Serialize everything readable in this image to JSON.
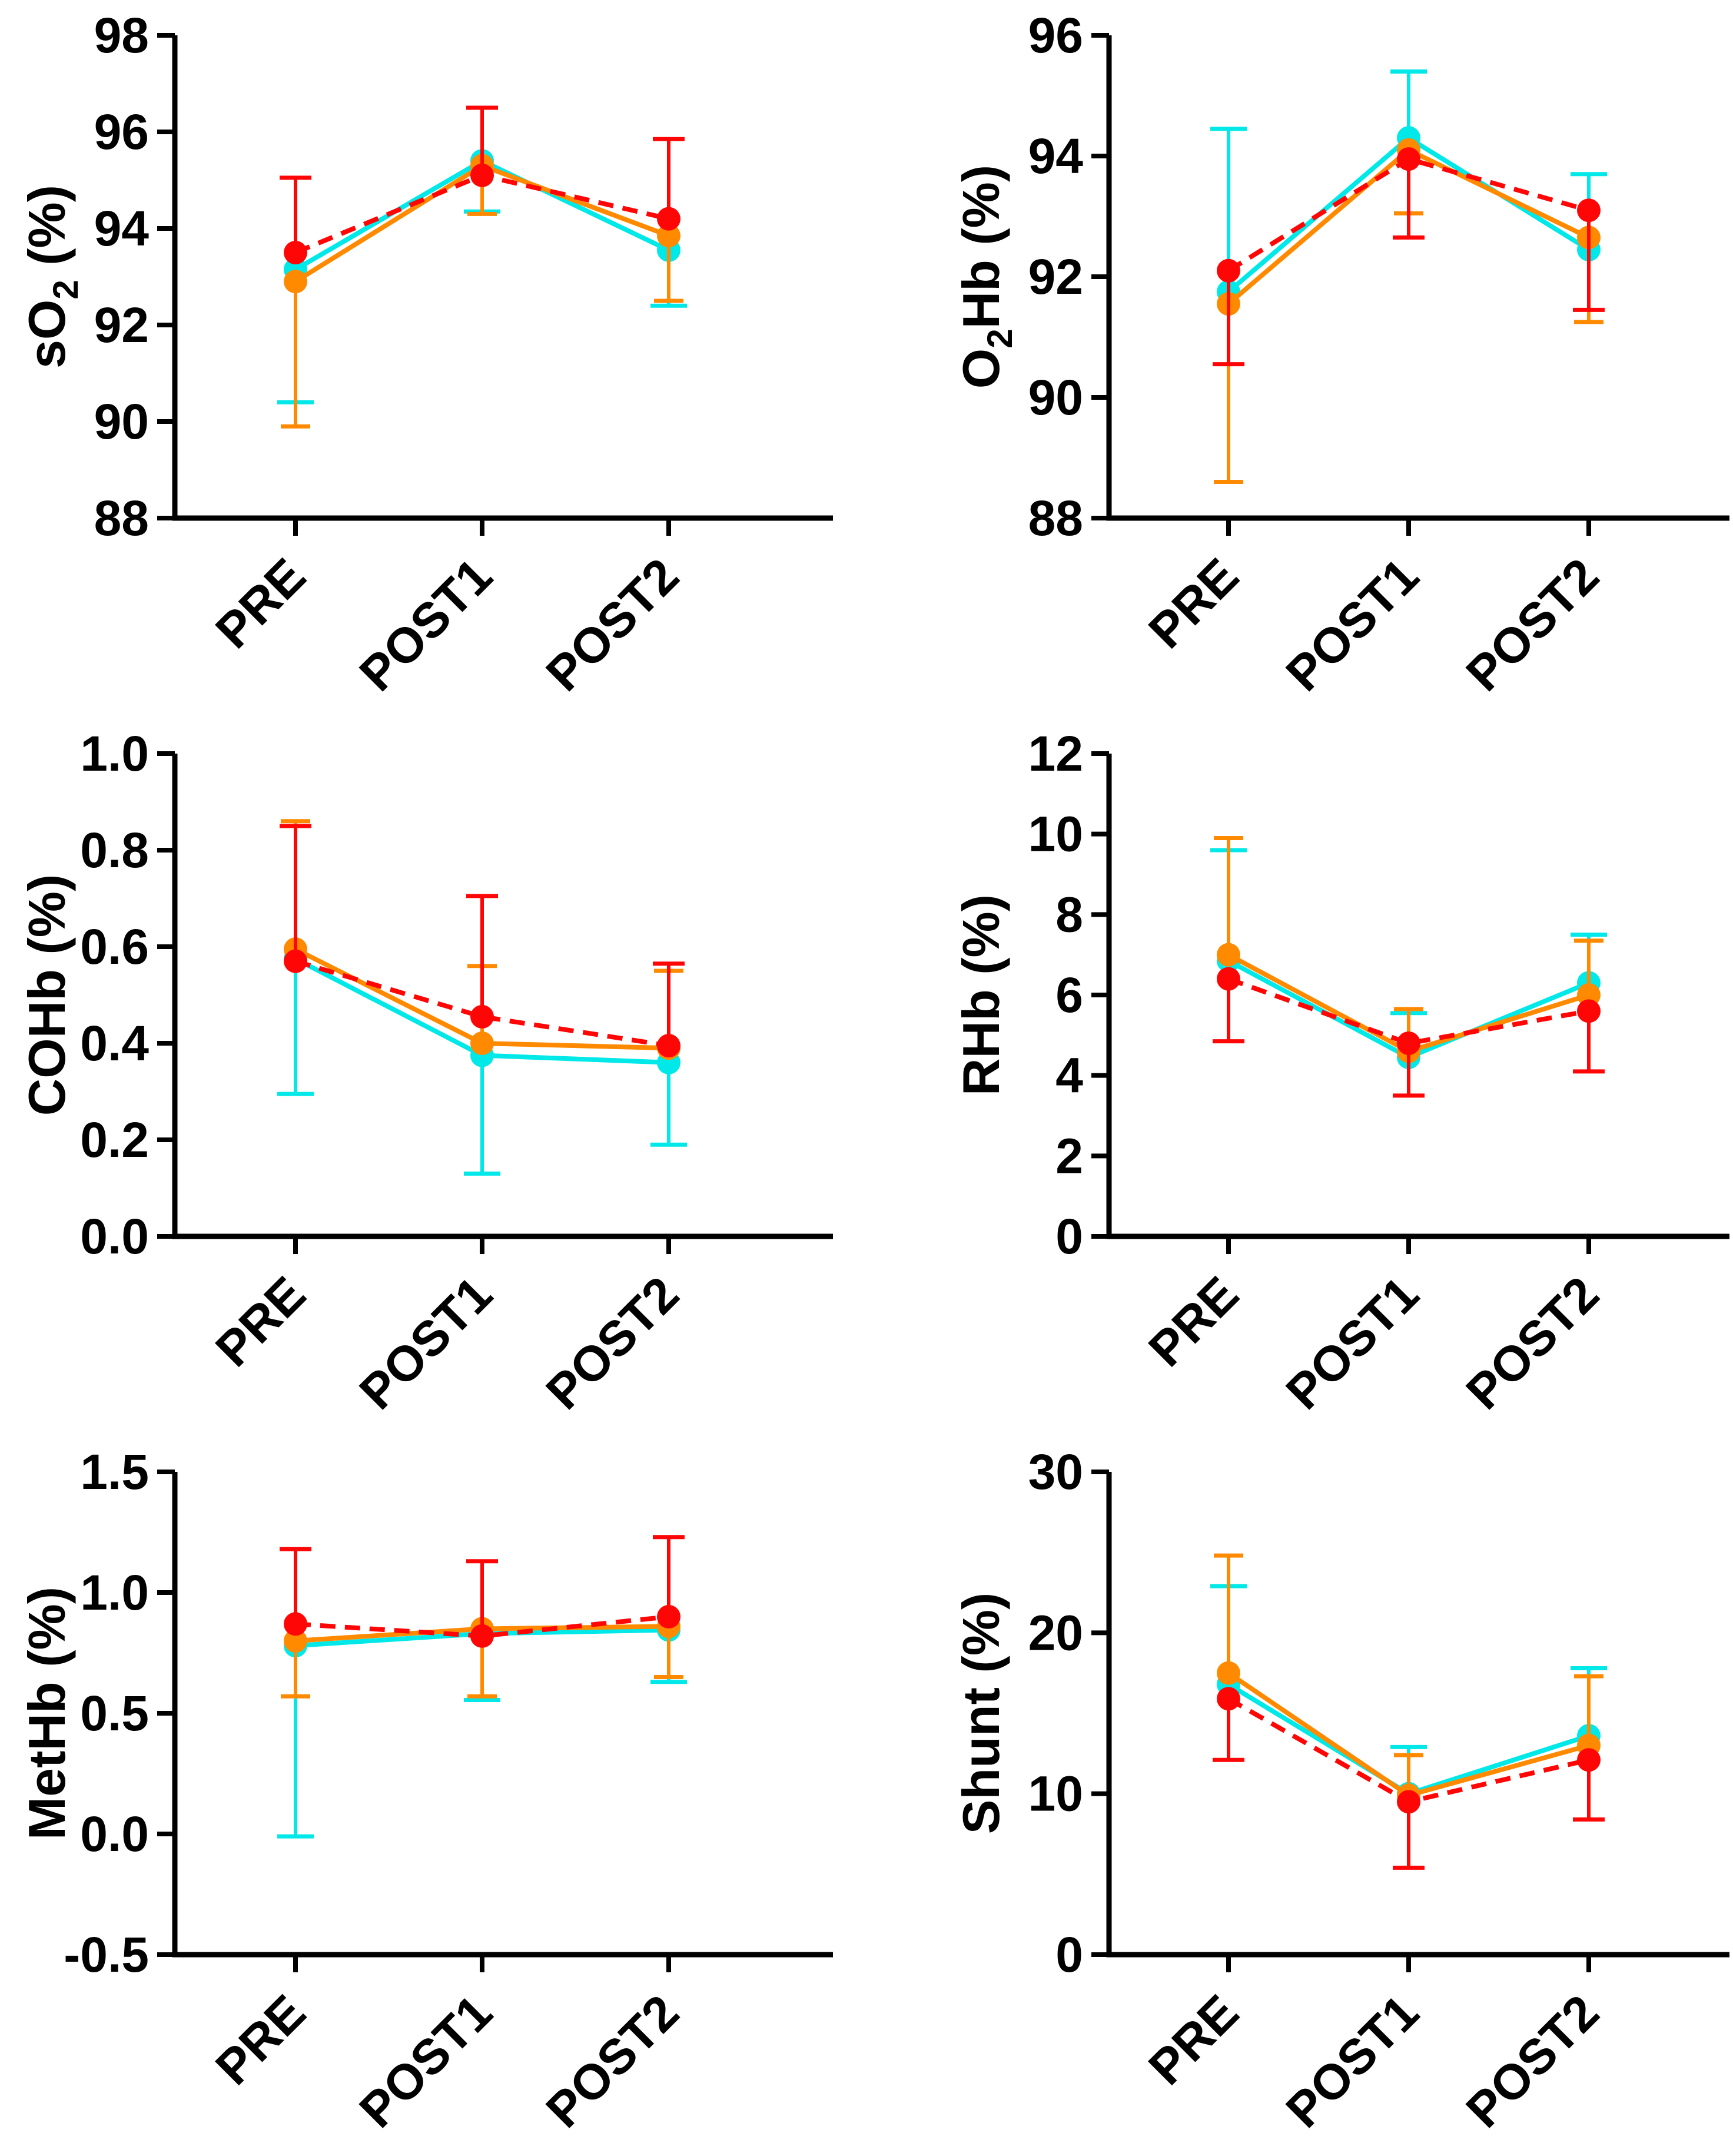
{
  "figure": {
    "background": "#FFFFFF",
    "axis_color": "#000000",
    "columns": 2,
    "rows": 3
  },
  "chart_data": [
    {
      "type": "line",
      "key": "so2",
      "ylabel": "sO2 (%)",
      "ylabel_parts": [
        {
          "text": "sO"
        },
        {
          "text": "2",
          "sub": true
        },
        {
          "text": " (%)"
        }
      ],
      "categories": [
        "PRE",
        "POST1",
        "POST2"
      ],
      "ylim": [
        88,
        98
      ],
      "yticks": [
        {
          "v": 88,
          "label": "88"
        },
        {
          "v": 90,
          "label": "90"
        },
        {
          "v": 92,
          "label": "92"
        },
        {
          "v": 94,
          "label": "94"
        },
        {
          "v": 96,
          "label": "96"
        },
        {
          "v": 98,
          "label": "98"
        }
      ],
      "grid": false,
      "legend": "none",
      "column": "left",
      "series": [
        {
          "name": "cyan-solid",
          "color": "#00E8E8",
          "dash": false,
          "values": [
            93.15,
            95.4,
            93.55
          ],
          "err_down": [
            90.4,
            94.35,
            92.4
          ],
          "err_up": [
            null,
            null,
            null
          ]
        },
        {
          "name": "orange-solid",
          "color": "#FF8A00",
          "dash": false,
          "values": [
            92.9,
            95.3,
            93.85
          ],
          "err_down": [
            89.9,
            94.3,
            92.5
          ],
          "err_up": [
            null,
            null,
            null
          ]
        },
        {
          "name": "red-dashed",
          "color": "#FF0606",
          "dash": true,
          "values": [
            93.5,
            95.1,
            94.2
          ],
          "err_down": [
            null,
            null,
            null
          ],
          "err_up": [
            95.05,
            96.5,
            95.85
          ]
        }
      ]
    },
    {
      "type": "line",
      "key": "o2hb",
      "ylabel": "O2Hb (%)",
      "ylabel_parts": [
        {
          "text": "O"
        },
        {
          "text": "2",
          "sub": true
        },
        {
          "text": "Hb (%)"
        }
      ],
      "categories": [
        "PRE",
        "POST1",
        "POST2"
      ],
      "ylim": [
        88,
        96
      ],
      "yticks": [
        {
          "v": 88,
          "label": "88"
        },
        {
          "v": 90,
          "label": "90"
        },
        {
          "v": 92,
          "label": "92"
        },
        {
          "v": 94,
          "label": "94"
        },
        {
          "v": 96,
          "label": "96"
        }
      ],
      "grid": false,
      "legend": "none",
      "column": "right",
      "series": [
        {
          "name": "cyan-solid",
          "color": "#00E8E8",
          "dash": false,
          "values": [
            91.75,
            94.3,
            92.45
          ],
          "err_down": [
            null,
            null,
            null
          ],
          "err_up": [
            94.45,
            95.4,
            93.7
          ]
        },
        {
          "name": "orange-solid",
          "color": "#FF8A00",
          "dash": false,
          "values": [
            91.55,
            94.1,
            92.65
          ],
          "err_down": [
            88.6,
            93.05,
            91.25
          ],
          "err_up": [
            null,
            null,
            null
          ]
        },
        {
          "name": "red-dashed",
          "color": "#FF0606",
          "dash": true,
          "values": [
            92.1,
            93.95,
            93.1
          ],
          "err_down": [
            90.55,
            92.65,
            91.45
          ],
          "err_up": [
            null,
            null,
            null
          ]
        }
      ]
    },
    {
      "type": "line",
      "key": "cohb",
      "ylabel": "COHb (%)",
      "ylabel_parts": [
        {
          "text": "COHb (%)"
        }
      ],
      "categories": [
        "PRE",
        "POST1",
        "POST2"
      ],
      "ylim": [
        0,
        1
      ],
      "yticks": [
        {
          "v": 0,
          "label": "0.0"
        },
        {
          "v": 0.2,
          "label": "0.2"
        },
        {
          "v": 0.4,
          "label": "0.4"
        },
        {
          "v": 0.6,
          "label": "0.6"
        },
        {
          "v": 0.8,
          "label": "0.8"
        },
        {
          "v": 1.0,
          "label": "1.0"
        }
      ],
      "grid": false,
      "legend": "none",
      "column": "left",
      "series": [
        {
          "name": "cyan-solid",
          "color": "#00E8E8",
          "dash": false,
          "values": [
            0.575,
            0.375,
            0.36
          ],
          "err_down": [
            0.295,
            0.13,
            0.19
          ],
          "err_up": [
            null,
            null,
            null
          ]
        },
        {
          "name": "orange-solid",
          "color": "#FF8A00",
          "dash": false,
          "values": [
            0.595,
            0.4,
            0.39
          ],
          "err_down": [
            null,
            null,
            null
          ],
          "err_up": [
            0.86,
            0.56,
            0.55
          ]
        },
        {
          "name": "red-dashed",
          "color": "#FF0606",
          "dash": true,
          "values": [
            0.57,
            0.455,
            0.395
          ],
          "err_down": [
            null,
            null,
            null
          ],
          "err_up": [
            0.85,
            0.705,
            0.565
          ]
        }
      ]
    },
    {
      "type": "line",
      "key": "rhb",
      "ylabel": "RHb (%)",
      "ylabel_parts": [
        {
          "text": "RHb (%)"
        }
      ],
      "categories": [
        "PRE",
        "POST1",
        "POST2"
      ],
      "ylim": [
        0,
        12
      ],
      "yticks": [
        {
          "v": 0,
          "label": "0"
        },
        {
          "v": 2,
          "label": "2"
        },
        {
          "v": 4,
          "label": "4"
        },
        {
          "v": 6,
          "label": "6"
        },
        {
          "v": 8,
          "label": "8"
        },
        {
          "v": 10,
          "label": "10"
        },
        {
          "v": 12,
          "label": "12"
        }
      ],
      "grid": false,
      "legend": "none",
      "column": "right",
      "series": [
        {
          "name": "cyan-solid",
          "color": "#00E8E8",
          "dash": false,
          "values": [
            6.85,
            4.45,
            6.3
          ],
          "err_down": [
            null,
            null,
            null
          ],
          "err_up": [
            9.6,
            5.55,
            7.5
          ]
        },
        {
          "name": "orange-solid",
          "color": "#FF8A00",
          "dash": false,
          "values": [
            7.0,
            4.6,
            6.0
          ],
          "err_down": [
            null,
            null,
            null
          ],
          "err_up": [
            9.9,
            5.65,
            7.35
          ]
        },
        {
          "name": "red-dashed",
          "color": "#FF0606",
          "dash": true,
          "values": [
            6.4,
            4.8,
            5.6
          ],
          "err_down": [
            4.85,
            3.5,
            4.1
          ],
          "err_up": [
            null,
            null,
            null
          ]
        }
      ]
    },
    {
      "type": "line",
      "key": "methb",
      "ylabel": "MetHb (%)",
      "ylabel_parts": [
        {
          "text": "MetHb (%)"
        }
      ],
      "categories": [
        "PRE",
        "POST1",
        "POST2"
      ],
      "ylim": [
        -0.5,
        1.5
      ],
      "yticks": [
        {
          "v": -0.5,
          "label": "-0.5"
        },
        {
          "v": 0.0,
          "label": "0.0"
        },
        {
          "v": 0.5,
          "label": "0.5"
        },
        {
          "v": 1.0,
          "label": "1.0"
        },
        {
          "v": 1.5,
          "label": "1.5"
        }
      ],
      "grid": false,
      "legend": "none",
      "column": "left",
      "series": [
        {
          "name": "cyan-solid",
          "color": "#00E8E8",
          "dash": false,
          "values": [
            0.78,
            0.83,
            0.845
          ],
          "err_down": [
            -0.01,
            0.555,
            0.63
          ],
          "err_up": [
            null,
            null,
            null
          ]
        },
        {
          "name": "orange-solid",
          "color": "#FF8A00",
          "dash": false,
          "values": [
            0.8,
            0.85,
            0.86
          ],
          "err_down": [
            0.57,
            0.57,
            0.65
          ],
          "err_up": [
            null,
            null,
            null
          ]
        },
        {
          "name": "red-dashed",
          "color": "#FF0606",
          "dash": true,
          "values": [
            0.87,
            0.82,
            0.9
          ],
          "err_down": [
            null,
            null,
            null
          ],
          "err_up": [
            1.18,
            1.13,
            1.23
          ]
        }
      ]
    },
    {
      "type": "line",
      "key": "shunt",
      "ylabel": "Shunt (%)",
      "ylabel_parts": [
        {
          "text": "Shunt (%)"
        }
      ],
      "categories": [
        "PRE",
        "POST1",
        "POST2"
      ],
      "ylim": [
        0,
        30
      ],
      "yticks": [
        {
          "v": 0,
          "label": "0"
        },
        {
          "v": 10,
          "label": "10"
        },
        {
          "v": 20,
          "label": "20"
        },
        {
          "v": 30,
          "label": "30"
        }
      ],
      "grid": false,
      "legend": "none",
      "column": "right",
      "series": [
        {
          "name": "cyan-solid",
          "color": "#00E8E8",
          "dash": false,
          "values": [
            16.8,
            10.0,
            13.6
          ],
          "err_down": [
            null,
            null,
            null
          ],
          "err_up": [
            22.9,
            12.9,
            17.8
          ]
        },
        {
          "name": "orange-solid",
          "color": "#FF8A00",
          "dash": false,
          "values": [
            17.5,
            9.9,
            13.0
          ],
          "err_down": [
            null,
            null,
            null
          ],
          "err_up": [
            24.8,
            12.4,
            17.3
          ]
        },
        {
          "name": "red-dashed",
          "color": "#FF0606",
          "dash": true,
          "values": [
            15.9,
            9.5,
            12.1
          ],
          "err_down": [
            12.1,
            5.4,
            8.4
          ],
          "err_up": [
            null,
            null,
            null
          ]
        }
      ]
    }
  ]
}
